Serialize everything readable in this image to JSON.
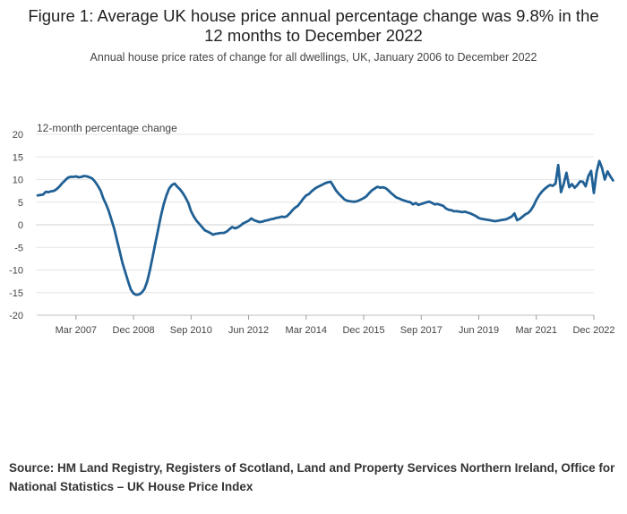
{
  "chart_data": {
    "type": "line",
    "title": "Figure 1: Average UK house price annual percentage change was 9.8% in the 12 months to December 2022",
    "subtitle": "Annual house price rates of change for all dwellings, UK, January 2006 to December 2022",
    "ylabel": "12-month percentage change",
    "xlabel": "",
    "ylim": [
      -20,
      20
    ],
    "yticks": [
      20,
      15,
      10,
      5,
      0,
      -5,
      -10,
      -15,
      -20
    ],
    "xticks": [
      {
        "label": "Mar 2007",
        "date": "2007-03"
      },
      {
        "label": "Dec 2008",
        "date": "2008-12"
      },
      {
        "label": "Sep 2010",
        "date": "2010-09"
      },
      {
        "label": "Jun 2012",
        "date": "2012-06"
      },
      {
        "label": "Mar 2014",
        "date": "2014-03"
      },
      {
        "label": "Dec 2015",
        "date": "2015-12"
      },
      {
        "label": "Sep 2017",
        "date": "2017-09"
      },
      {
        "label": "Jun 2019",
        "date": "2019-06"
      },
      {
        "label": "Mar 2021",
        "date": "2021-03"
      },
      {
        "label": "Dec 2022",
        "date": "2022-12"
      }
    ],
    "grid": true,
    "line_color": "#206095",
    "series": [
      {
        "start": "2006-01",
        "end": "2022-12",
        "values": [
          6.5,
          6.6,
          6.7,
          7.3,
          7.2,
          7.4,
          7.5,
          7.9,
          8.5,
          9.2,
          9.8,
          10.4,
          10.6,
          10.6,
          10.7,
          10.5,
          10.6,
          10.8,
          10.7,
          10.5,
          10.2,
          9.5,
          8.6,
          7.5,
          5.8,
          4.5,
          3.0,
          1.0,
          -1.0,
          -3.5,
          -6.0,
          -8.5,
          -10.5,
          -12.5,
          -14.3,
          -15.2,
          -15.5,
          -15.4,
          -15.0,
          -14.2,
          -12.5,
          -10.0,
          -7.0,
          -4.0,
          -1.0,
          2.0,
          4.5,
          6.5,
          8.0,
          8.8,
          9.1,
          8.4,
          7.8,
          7.0,
          6.0,
          4.8,
          3.0,
          1.8,
          0.9,
          0.2,
          -0.5,
          -1.2,
          -1.5,
          -1.8,
          -2.2,
          -2.0,
          -1.9,
          -1.8,
          -1.8,
          -1.5,
          -1.0,
          -0.5,
          -0.8,
          -0.6,
          -0.2,
          0.3,
          0.6,
          0.9,
          1.4,
          1.0,
          0.8,
          0.6,
          0.7,
          0.9,
          1.0,
          1.2,
          1.3,
          1.5,
          1.6,
          1.8,
          1.7,
          1.9,
          2.5,
          3.2,
          3.8,
          4.2,
          5.0,
          5.8,
          6.5,
          6.8,
          7.4,
          7.9,
          8.3,
          8.6,
          8.9,
          9.2,
          9.4,
          9.5,
          8.5,
          7.5,
          6.8,
          6.2,
          5.6,
          5.3,
          5.2,
          5.1,
          5.1,
          5.3,
          5.6,
          5.9,
          6.3,
          7.0,
          7.6,
          8.0,
          8.4,
          8.2,
          8.3,
          8.1,
          7.6,
          7.0,
          6.5,
          6.0,
          5.8,
          5.5,
          5.3,
          5.1,
          5.0,
          4.5,
          4.8,
          4.4,
          4.6,
          4.8,
          5.0,
          5.1,
          4.8,
          4.5,
          4.6,
          4.4,
          4.2,
          3.6,
          3.3,
          3.2,
          3.0,
          3.0,
          2.9,
          2.8,
          2.9,
          2.7,
          2.5,
          2.2,
          1.9,
          1.5,
          1.3,
          1.2,
          1.1,
          1.0,
          0.9,
          0.8,
          0.9,
          1.0,
          1.1,
          1.2,
          1.5,
          1.8,
          2.5,
          1.0,
          1.3,
          1.8,
          2.3,
          2.6,
          3.2,
          4.2,
          5.5,
          6.5,
          7.3,
          7.9,
          8.4,
          8.8,
          8.6,
          9.1,
          13.2,
          7.2,
          9.0,
          11.5,
          8.3,
          9.0,
          8.2,
          8.8,
          9.6,
          9.5,
          8.5,
          10.8,
          11.9,
          7.0,
          11.7,
          14.1,
          12.5,
          10.0,
          11.8,
          10.7,
          9.8
        ]
      }
    ]
  },
  "source": "Source: HM Land Registry, Registers of Scotland, Land and Property Services Northern Ireland, Office for National Statistics – UK House Price Index"
}
